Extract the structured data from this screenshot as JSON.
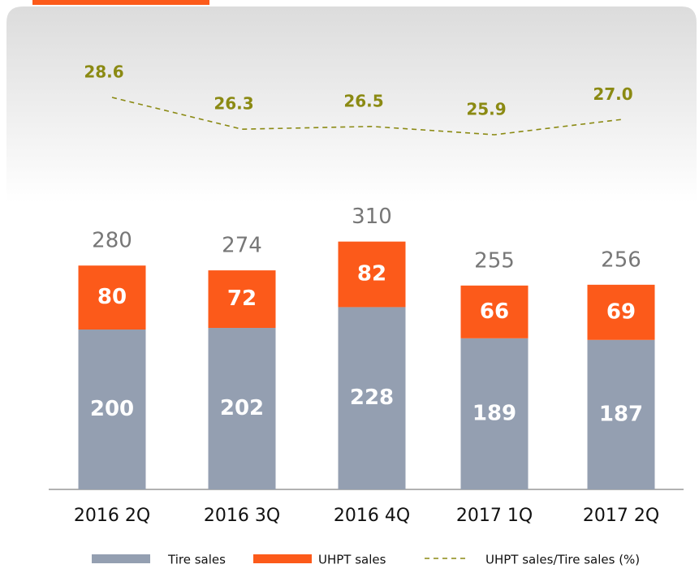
{
  "chart_data": {
    "type": "bar",
    "stacked": true,
    "categories": [
      "2016 2Q",
      "2016 3Q",
      "2016 4Q",
      "2017 1Q",
      "2017 2Q"
    ],
    "series": [
      {
        "name": "Tire sales",
        "color": "#949fb1",
        "values": [
          200,
          202,
          228,
          189,
          187
        ]
      },
      {
        "name": "UHPT sales",
        "color": "#fc5a1a",
        "values": [
          80,
          72,
          82,
          66,
          69
        ]
      },
      {
        "name": "UHPT sales/Tire sales (%)",
        "type": "line",
        "axis": "y2",
        "color": "#8b8a13",
        "values": [
          28.6,
          26.3,
          26.5,
          25.9,
          27.0
        ],
        "value_labels": [
          "28.6",
          "26.3",
          "26.5",
          "25.9",
          "27.0"
        ]
      }
    ],
    "totals": [
      280,
      274,
      310,
      255,
      256
    ]
  }
}
